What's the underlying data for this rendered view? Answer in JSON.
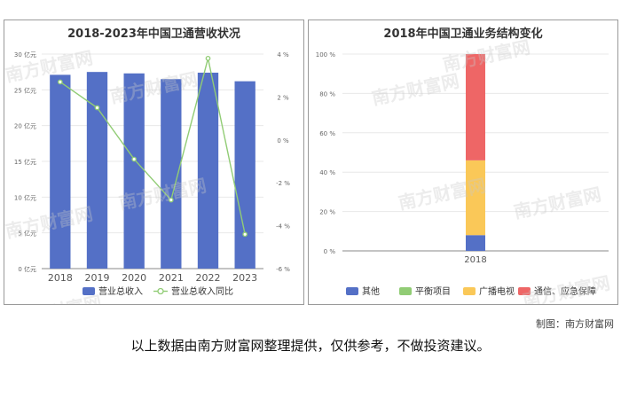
{
  "watermark": "南方财富网",
  "charts": [
    {
      "id": "left",
      "title": "2018-2023年中国卫通营收状况"
    },
    {
      "id": "right",
      "title": "2018年中国卫通业务结构变化"
    }
  ],
  "chart_data": [
    {
      "type": "bar",
      "title": "2018-2023年中国卫通营收状况",
      "categories": [
        "2018",
        "2019",
        "2020",
        "2021",
        "2022",
        "2023"
      ],
      "series": [
        {
          "name": "营业总收入",
          "type": "bar",
          "axis": "left",
          "color": "#5470c6",
          "values": [
            27.1,
            27.5,
            27.3,
            26.5,
            27.4,
            26.2
          ]
        },
        {
          "name": "营业总收入同比",
          "type": "line",
          "axis": "right",
          "color": "#91cc75",
          "values": [
            2.7,
            1.5,
            -0.9,
            -2.8,
            3.8,
            -4.4
          ]
        }
      ],
      "y_left": {
        "min": 0,
        "max": 30,
        "step": 5,
        "unit": "亿元",
        "ticks": [
          "0 亿元",
          "5 亿元",
          "10 亿元",
          "15 亿元",
          "20 亿元",
          "25 亿元",
          "30 亿元"
        ]
      },
      "y_right": {
        "min": -6,
        "max": 4,
        "step": 2,
        "unit": "%",
        "ticks": [
          "-6 %",
          "-4 %",
          "-2 %",
          "0 %",
          "2 %",
          "4 %"
        ]
      },
      "legend": {
        "position": "bottom",
        "items": [
          "营业总收入",
          "营业总收入同比"
        ]
      },
      "grid": true
    },
    {
      "type": "bar",
      "stacked": true,
      "title": "2018年中国卫通业务结构变化",
      "categories": [
        "2018"
      ],
      "series": [
        {
          "name": "其他",
          "color": "#5470c6",
          "values": [
            8
          ]
        },
        {
          "name": "平衡项目",
          "color": "#91cc75",
          "values": [
            0
          ]
        },
        {
          "name": "广播电视",
          "color": "#fac858",
          "values": [
            38
          ]
        },
        {
          "name": "通信、应急保障",
          "color": "#ee6666",
          "values": [
            54
          ]
        }
      ],
      "y": {
        "min": 0,
        "max": 100,
        "step": 20,
        "unit": "%",
        "ticks": [
          "0 %",
          "20 %",
          "40 %",
          "60 %",
          "80 %",
          "100 %"
        ]
      },
      "legend": {
        "position": "bottom",
        "items": [
          "其他",
          "平衡项目",
          "广播电视",
          "通信、应急保障"
        ]
      },
      "grid": true
    }
  ],
  "footer": {
    "credit": "制图：南方财富网",
    "disclaimer": "以上数据由南方财富网整理提供，仅供参考，不做投资建议。"
  }
}
